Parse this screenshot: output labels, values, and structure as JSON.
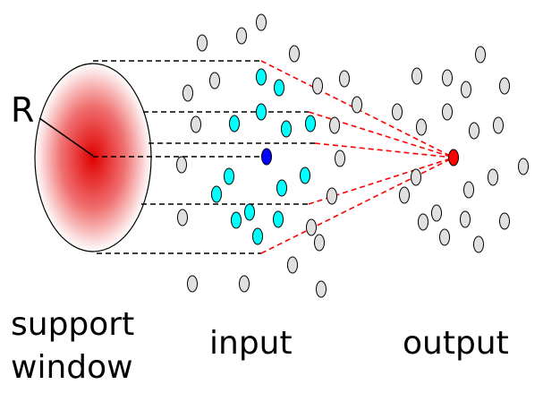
{
  "labels": {
    "radius": "R",
    "support_line1": "support",
    "support_line2": "window",
    "input": "input",
    "output": "output"
  },
  "colors": {
    "support_center": "#e00000",
    "support_edge": "#ffffff",
    "neighbor_point": "#00ffff",
    "query_point": "#0000ff",
    "output_point": "#ff0000",
    "other_point": "#e0e0e0",
    "projection_line": "#000000",
    "connection_line": "#ff0000"
  }
}
